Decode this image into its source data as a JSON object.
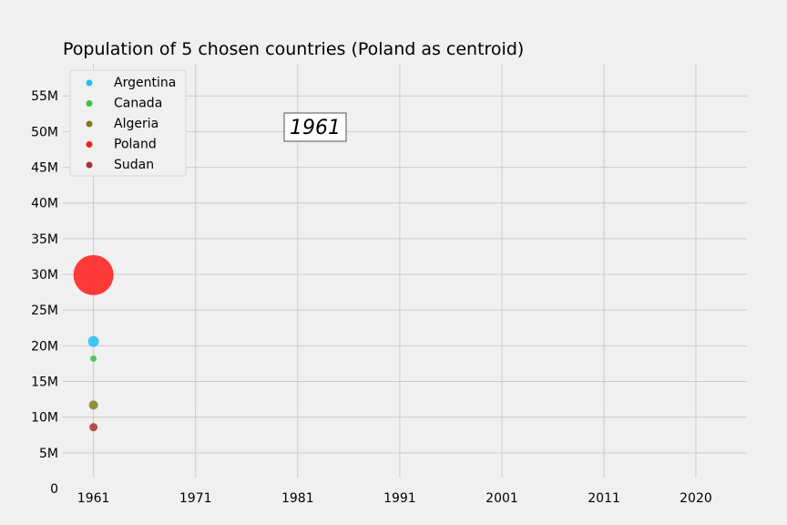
{
  "chart_data": {
    "type": "scatter",
    "title": "Population of 5 chosen countries (Poland as centroid)",
    "annotation": "1961",
    "xlabel": "",
    "ylabel": "",
    "x_ticks": [
      "1961",
      "1971",
      "1981",
      "1991",
      "2001",
      "2011",
      "2020"
    ],
    "y_ticks": [
      "0",
      "5M",
      "10M",
      "15M",
      "20M",
      "25M",
      "30M",
      "35M",
      "40M",
      "45M",
      "50M",
      "55M"
    ],
    "xlim": [
      1958,
      2025
    ],
    "ylim": [
      0,
      59500000
    ],
    "grid": true,
    "legend_position": "upper-left",
    "series": [
      {
        "name": "Argentina",
        "color": "#1fbff0",
        "x": 1961,
        "y": 20600000
      },
      {
        "name": "Canada",
        "color": "#3fbf3f",
        "x": 1961,
        "y": 18200000
      },
      {
        "name": "Algeria",
        "color": "#7f7f1a",
        "x": 1961,
        "y": 11700000
      },
      {
        "name": "Poland",
        "color": "#ff1a1a",
        "x": 1961,
        "y": 29900000
      },
      {
        "name": "Sudan",
        "color": "#a83232",
        "x": 1961,
        "y": 8600000
      }
    ]
  }
}
